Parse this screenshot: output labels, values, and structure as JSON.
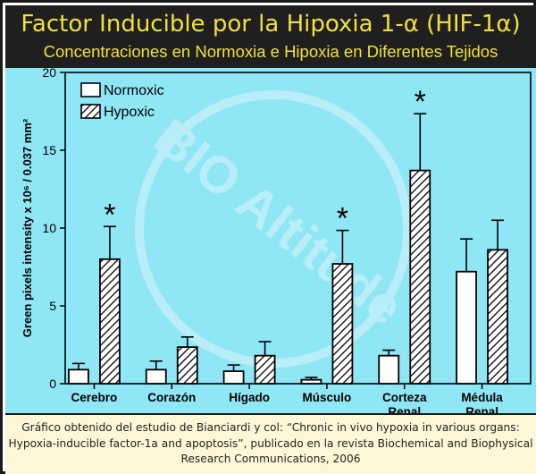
{
  "header": {
    "title": "Factor Inducible por la Hipoxia 1-α (HIF-1α)",
    "subtitle": "Concentraciones en Normoxia e Hipoxia en Diferentes Tejidos"
  },
  "watermark": "BIO Altitude",
  "footer": {
    "lines": [
      "Gráfico obtenido del estudio de Bianciardi y col: “Chronic in vivo hypoxia in various organs:",
      "Hypoxia-inducible factor-1a and apoptosis”, publicado en la revista Biochemical and Biophysical",
      "Research Communications, 2006"
    ]
  },
  "colors": {
    "header_bg": "#1f1f1f",
    "title_text": "#f1e03a",
    "plot_bg": "#8fe6f5",
    "footer_bg": "#fdf7d8",
    "bar_fill": "#ffffff",
    "bar_stroke": "#000000"
  },
  "chart_data": {
    "type": "bar",
    "title": "",
    "xlabel": "",
    "ylabel": "Green pixels intensity x 10⁶ / 0.037 mm²",
    "ylim": [
      0,
      20
    ],
    "yticks": [
      "0",
      "5",
      "10",
      "15",
      "20"
    ],
    "categories": [
      [
        "Cerebro"
      ],
      [
        "Corazón"
      ],
      [
        "Hígado"
      ],
      [
        "Músculo"
      ],
      [
        "Corteza",
        "Renal"
      ],
      [
        "Médula",
        "Renal"
      ]
    ],
    "series": [
      {
        "name": "Normoxic",
        "pattern": "solid",
        "values": [
          0.9,
          0.9,
          0.8,
          0.25,
          1.8,
          7.2
        ],
        "errors": [
          0.4,
          0.55,
          0.4,
          0.15,
          0.35,
          2.1
        ]
      },
      {
        "name": "Hypoxic",
        "pattern": "hatched",
        "values": [
          8.0,
          2.35,
          1.8,
          7.7,
          13.7,
          8.6
        ],
        "errors": [
          2.1,
          0.65,
          0.9,
          2.15,
          3.65,
          1.9
        ]
      }
    ],
    "significance": [
      true,
      false,
      false,
      true,
      true,
      false
    ],
    "significance_marker": "*",
    "legend": "top-left",
    "grid": false
  }
}
